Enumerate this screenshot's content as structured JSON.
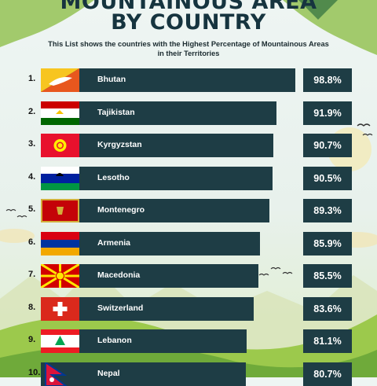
{
  "header": {
    "title_line_1": "MOUNTAINOUS AREA",
    "title_line_2": "BY COUNTRY",
    "subtitle_line_1": "This List shows the countries with the Highest Percentage of Mountainous Areas",
    "subtitle_line_2": "in their Territories"
  },
  "colors": {
    "bar": "#1e3d45",
    "title": "#16343f"
  },
  "chart_data": {
    "type": "bar",
    "orientation": "horizontal",
    "title": "MOUNTAINOUS AREA BY COUNTRY",
    "subtitle": "This List shows the countries with the Highest Percentage of Mountainous Areas in their Territories",
    "categories": [
      "Bhutan",
      "Tajikistan",
      "Kyrgyzstan",
      "Lesotho",
      "Montenegro",
      "Armenia",
      "Macedonia",
      "Switzerland",
      "Lebanon",
      "Nepal"
    ],
    "ranks": [
      "1.",
      "2.",
      "3.",
      "4.",
      "5.",
      "6.",
      "7.",
      "8.",
      "9.",
      "10."
    ],
    "values": [
      98.8,
      91.9,
      90.7,
      90.5,
      89.3,
      85.9,
      85.5,
      83.6,
      81.1,
      80.7
    ],
    "value_labels": [
      "98.8%",
      "91.9%",
      "90.7%",
      "90.5%",
      "89.3%",
      "85.9%",
      "85.5%",
      "83.6%",
      "81.1%",
      "80.7%"
    ],
    "flag_icons": [
      "bhutan-flag-icon",
      "tajikistan-flag-icon",
      "kyrgyzstan-flag-icon",
      "lesotho-flag-icon",
      "montenegro-flag-icon",
      "armenia-flag-icon",
      "macedonia-flag-icon",
      "switzerland-flag-icon",
      "lebanon-flag-icon",
      "nepal-flag-icon"
    ],
    "xlabel": "",
    "ylabel": "",
    "grid": false,
    "legend": "none"
  }
}
